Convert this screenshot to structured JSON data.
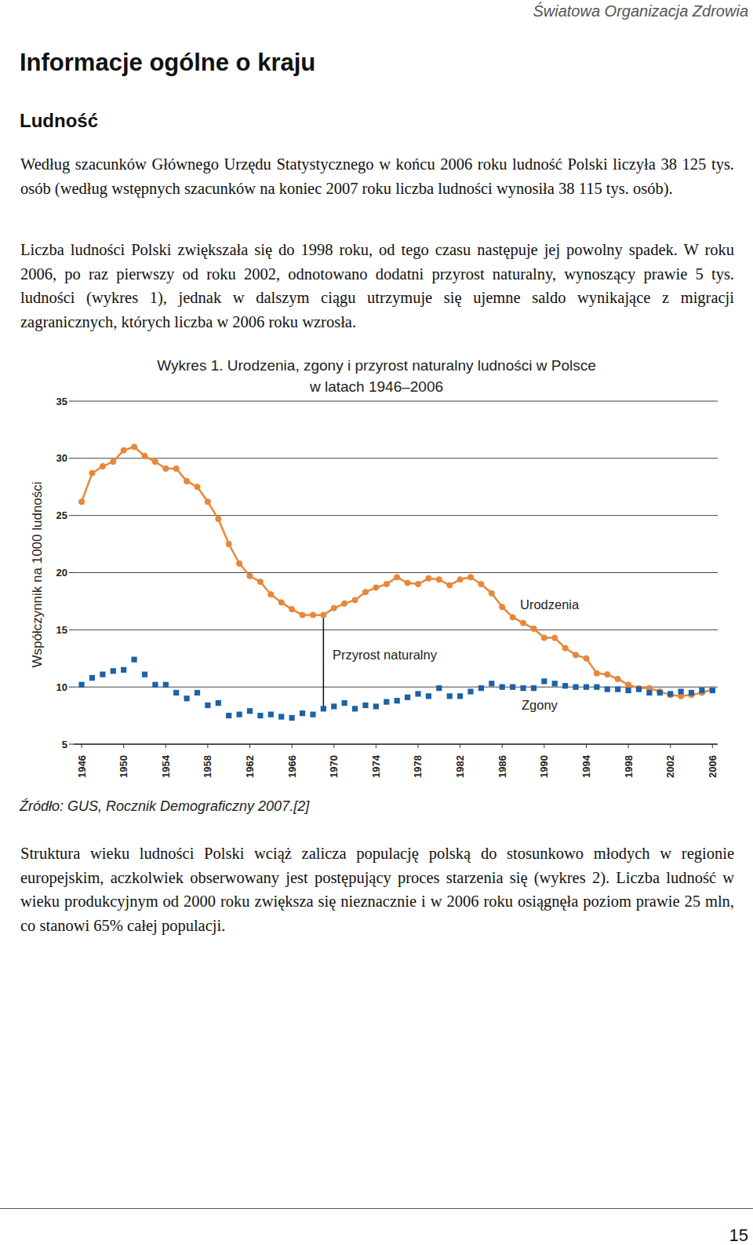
{
  "header": {
    "organization": "Światowa Organizacja Zdrowia"
  },
  "title": "Informacje ogólne o kraju",
  "section": "Ludność",
  "paragraphs": [
    "Według szacunków Głównego Urzędu Statystycznego w końcu 2006 roku ludność Polski liczyła 38 125 tys. osób (według wstępnych szacunków na koniec 2007 roku liczba ludności wynosiła 38 115 tys. osób).",
    "Liczba ludności Polski zwiększała się do 1998 roku, od tego czasu następuje jej powolny spadek. W roku 2006, po raz pierwszy od roku 2002, odnotowano dodatni przyrost naturalny, wynoszący prawie 5 tys. ludności (wykres 1), jednak w dalszym ciągu utrzymuje się ujemne saldo wynikające z migracji zagranicznych, których liczba w 2006 roku wzrosła."
  ],
  "chart_data": {
    "type": "line",
    "title": "Wykres 1. Urodzenia, zgony i przyrost naturalny ludności w Polsce w latach 1946–2006",
    "y_label": "Współczynnik na 1000 ludności",
    "x": [
      1946,
      1947,
      1948,
      1949,
      1950,
      1951,
      1952,
      1953,
      1954,
      1955,
      1956,
      1957,
      1958,
      1959,
      1960,
      1961,
      1962,
      1963,
      1964,
      1965,
      1966,
      1967,
      1968,
      1969,
      1970,
      1971,
      1972,
      1973,
      1974,
      1975,
      1976,
      1977,
      1978,
      1979,
      1980,
      1981,
      1982,
      1983,
      1984,
      1985,
      1986,
      1987,
      1988,
      1989,
      1990,
      1991,
      1992,
      1993,
      1994,
      1995,
      1996,
      1997,
      1998,
      1999,
      2000,
      2001,
      2002,
      2003,
      2004,
      2005,
      2006
    ],
    "series": [
      {
        "name": "Urodzenia",
        "color": "#e8873a",
        "marker": "circle",
        "line_style": "solid",
        "values": [
          26.2,
          28.7,
          29.3,
          29.7,
          30.7,
          31.0,
          30.2,
          29.7,
          29.1,
          29.1,
          28.0,
          27.5,
          26.2,
          24.7,
          22.5,
          20.8,
          19.7,
          19.2,
          18.1,
          17.4,
          16.8,
          16.3,
          16.3,
          16.3,
          16.9,
          17.3,
          17.6,
          18.3,
          18.7,
          19.0,
          19.6,
          19.1,
          19.0,
          19.5,
          19.4,
          18.9,
          19.4,
          19.6,
          19.0,
          18.2,
          17.0,
          16.1,
          15.6,
          15.1,
          14.3,
          14.3,
          13.4,
          12.8,
          12.5,
          11.2,
          11.1,
          10.7,
          10.2,
          9.9,
          9.9,
          9.6,
          9.3,
          9.2,
          9.3,
          9.5,
          9.8
        ]
      },
      {
        "name": "Zgony",
        "color": "#1b62a6",
        "marker": "square",
        "line_style": "none",
        "values": [
          10.2,
          10.8,
          11.1,
          11.4,
          11.5,
          12.4,
          11.1,
          10.2,
          10.2,
          9.5,
          9.0,
          9.5,
          8.4,
          8.6,
          7.5,
          7.6,
          7.9,
          7.5,
          7.6,
          7.4,
          7.3,
          7.7,
          7.6,
          8.1,
          8.3,
          8.6,
          8.1,
          8.4,
          8.3,
          8.7,
          8.8,
          9.1,
          9.4,
          9.2,
          9.9,
          9.2,
          9.2,
          9.6,
          9.9,
          10.3,
          10.0,
          10.0,
          9.9,
          9.9,
          10.5,
          10.3,
          10.1,
          10.0,
          10.0,
          10.0,
          9.8,
          9.8,
          9.7,
          9.8,
          9.5,
          9.5,
          9.4,
          9.6,
          9.5,
          9.7,
          9.7
        ]
      }
    ],
    "annotations": [
      {
        "text": "Przyrost naturalny",
        "x": 1969
      }
    ],
    "xlim": [
      1945.25,
      2006.5
    ],
    "xticks": [
      1946,
      1950,
      1954,
      1958,
      1962,
      1966,
      1970,
      1974,
      1978,
      1982,
      1986,
      1990,
      1994,
      1998,
      2002,
      2006
    ],
    "ylim": [
      5,
      35
    ],
    "yticks": [
      5,
      10,
      15,
      20,
      25,
      30,
      35
    ],
    "grid": true
  },
  "source": "Źródło: GUS, Rocznik Demograficzny 2007.[2]",
  "paragraphs_after": [
    "Struktura wieku ludności Polski wciąż zalicza populację polską do stosunkowo młodych w regionie europejskim, aczkolwiek obserwowany jest postępujący proces starzenia się (wykres 2). Liczba ludność w wieku produkcyjnym od 2000 roku zwiększa się nieznacznie i w 2006 roku osiągnęła poziom prawie 25 mln, co stanowi 65% całej populacji."
  ],
  "page_number": "15"
}
